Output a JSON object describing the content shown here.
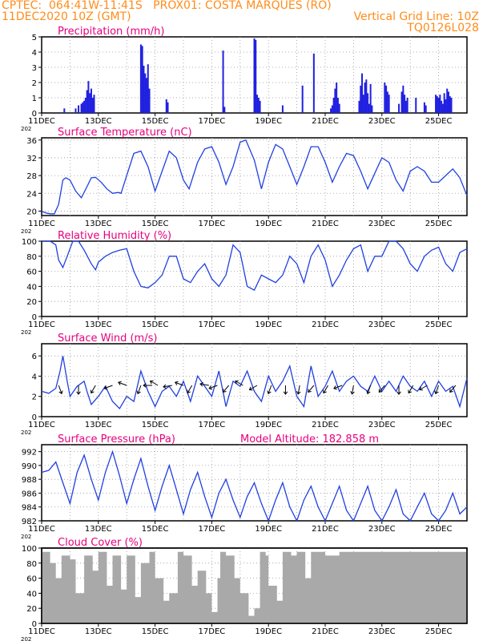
{
  "header": {
    "line1": "CPTEC:  064:41W-11:41S   PROX01: COSTA MARQUES (RO)",
    "line2": "11DEC2020 10Z (GMT)",
    "grid_note": "Vertical Grid Line: 10Z",
    "code": "TQ0126L028"
  },
  "colors": {
    "header": "#ff8c1a",
    "title": "#e6007e",
    "line": "#2040e0",
    "bar": "#2020e0",
    "cloud": "#a9a9a9",
    "arrow": "#000000"
  },
  "x_tick_labels": [
    "11DEC",
    "13DEC",
    "15DEC",
    "17DEC",
    "19DEC",
    "21DEC",
    "23DEC",
    "25DEC"
  ],
  "year_fragment": "202",
  "chart_data": [
    {
      "type": "bar",
      "title": "Precipitation  (mm/h)",
      "ylim": [
        0,
        5
      ],
      "yticks": [
        "0",
        "1",
        "2",
        "3",
        "4",
        "5"
      ],
      "xlim_days": [
        0,
        15
      ],
      "grid": true,
      "x": [
        0.8,
        1.2,
        1.3,
        1.4,
        1.45,
        1.5,
        1.55,
        1.6,
        1.65,
        1.7,
        1.75,
        1.8,
        1.85,
        3.5,
        3.55,
        3.6,
        3.65,
        3.7,
        3.75,
        3.8,
        4.4,
        4.45,
        6.4,
        6.45,
        7.5,
        7.55,
        7.6,
        7.65,
        7.7,
        8.5,
        9.2,
        9.6,
        10.2,
        10.25,
        10.3,
        10.35,
        10.4,
        10.45,
        10.5,
        11.2,
        11.25,
        11.3,
        11.35,
        11.4,
        11.45,
        11.5,
        11.55,
        11.6,
        11.65,
        12.1,
        12.15,
        12.2,
        12.25,
        12.6,
        12.7,
        12.75,
        12.8,
        12.85,
        12.9,
        13.2,
        13.5,
        13.55,
        13.9,
        13.95,
        14.0,
        14.05,
        14.1,
        14.15,
        14.2,
        14.25,
        14.3,
        14.35,
        14.4,
        14.45
      ],
      "values": [
        0.3,
        0.3,
        0.5,
        0.6,
        0.7,
        0.8,
        1.0,
        1.5,
        2.1,
        1.3,
        1.6,
        1.0,
        1.2,
        4.5,
        4.4,
        3.1,
        2.6,
        2.3,
        3.2,
        1.6,
        0.9,
        0.7,
        4.1,
        0.4,
        4.9,
        4.8,
        1.2,
        1.0,
        0.8,
        0.5,
        1.8,
        3.9,
        0.3,
        0.5,
        1.0,
        1.6,
        2.0,
        1.0,
        0.6,
        0.8,
        1.8,
        2.6,
        1.2,
        2.0,
        2.2,
        1.3,
        0.6,
        1.9,
        0.5,
        2.0,
        1.8,
        1.4,
        1.2,
        0.6,
        1.4,
        1.8,
        1.2,
        0.8,
        1.0,
        1.0,
        0.7,
        0.5,
        1.2,
        1.1,
        1.0,
        1.2,
        0.8,
        0.6,
        1.3,
        0.9,
        1.6,
        1.4,
        1.1,
        1.0
      ]
    },
    {
      "type": "line",
      "title": "Surface Temperature (nC)",
      "ylim": [
        19,
        36.5
      ],
      "yticks": [
        "20",
        "24",
        "28",
        "32",
        "36"
      ],
      "xlim_days": [
        0,
        15
      ],
      "grid": true,
      "x": [
        0,
        0.1,
        0.2,
        0.3,
        0.45,
        0.6,
        0.75,
        0.85,
        1.0,
        1.2,
        1.4,
        1.6,
        1.75,
        1.9,
        2.1,
        2.3,
        2.5,
        2.7,
        2.8,
        3.0,
        3.25,
        3.5,
        3.75,
        4.0,
        4.25,
        4.5,
        4.75,
        5.0,
        5.2,
        5.5,
        5.75,
        6.0,
        6.25,
        6.5,
        6.75,
        7.0,
        7.2,
        7.5,
        7.75,
        8.0,
        8.25,
        8.5,
        8.75,
        9.0,
        9.25,
        9.5,
        9.75,
        10.0,
        10.25,
        10.5,
        10.75,
        11.0,
        11.25,
        11.5,
        11.75,
        12.0,
        12.25,
        12.5,
        12.75,
        13.0,
        13.25,
        13.5,
        13.75,
        14.0,
        14.25,
        14.5,
        14.75,
        15.0
      ],
      "values": [
        20,
        19.7,
        19.5,
        19.4,
        19.4,
        21.5,
        27,
        27.5,
        27,
        24.5,
        23,
        25.5,
        27.5,
        27.6,
        26.5,
        25,
        24,
        24.2,
        24,
        28,
        33,
        33.5,
        30,
        24.5,
        29,
        33.5,
        32,
        27,
        25,
        31,
        34,
        34.5,
        31,
        26,
        30,
        35.5,
        36,
        31.5,
        25,
        31,
        35,
        34,
        30,
        26,
        30,
        34.5,
        34.5,
        31,
        26.5,
        30,
        33,
        32.5,
        29,
        25,
        28.5,
        32,
        31,
        27,
        24.5,
        29,
        30,
        29,
        26.5,
        26.5,
        28,
        29.5,
        27.5,
        23.5
      ]
    },
    {
      "type": "line",
      "title": "Relative Humidity (%)",
      "ylim": [
        0,
        100
      ],
      "yticks": [
        "0",
        "20",
        "40",
        "60",
        "80",
        "100"
      ],
      "xlim_days": [
        0,
        15
      ],
      "grid": true,
      "x": [
        0,
        0.3,
        0.5,
        0.6,
        0.75,
        0.9,
        1.1,
        1.3,
        1.5,
        1.75,
        1.9,
        2.0,
        2.25,
        2.5,
        2.75,
        3.0,
        3.25,
        3.5,
        3.75,
        4.0,
        4.25,
        4.5,
        4.75,
        5.0,
        5.25,
        5.5,
        5.75,
        6.0,
        6.25,
        6.5,
        6.75,
        7.0,
        7.25,
        7.5,
        7.75,
        8.0,
        8.25,
        8.5,
        8.75,
        9.0,
        9.25,
        9.5,
        9.75,
        10.0,
        10.25,
        10.5,
        10.75,
        11.0,
        11.25,
        11.5,
        11.75,
        12.0,
        12.25,
        12.5,
        12.75,
        13.0,
        13.25,
        13.5,
        13.75,
        14.0,
        14.25,
        14.5,
        14.75,
        15.0
      ],
      "values": [
        100,
        100,
        95,
        75,
        65,
        80,
        100,
        100,
        88,
        70,
        62,
        72,
        80,
        85,
        88,
        90,
        60,
        40,
        38,
        45,
        55,
        80,
        80,
        50,
        45,
        60,
        70,
        50,
        40,
        55,
        95,
        85,
        40,
        35,
        55,
        50,
        45,
        55,
        80,
        70,
        45,
        80,
        95,
        75,
        40,
        55,
        75,
        90,
        95,
        60,
        80,
        80,
        100,
        100,
        90,
        70,
        60,
        80,
        88,
        92,
        70,
        60,
        85,
        90
      ]
    },
    {
      "type": "line",
      "title": "Surface Wind  (m/s)",
      "ylim": [
        0,
        7.2
      ],
      "yticks": [
        "0",
        "2",
        "4",
        "6"
      ],
      "xlim_days": [
        0,
        15
      ],
      "grid": true,
      "x": [
        0,
        0.25,
        0.5,
        0.65,
        0.75,
        0.9,
        1.0,
        1.25,
        1.5,
        1.6,
        1.75,
        2.0,
        2.25,
        2.5,
        2.75,
        3.0,
        3.25,
        3.5,
        3.75,
        4.0,
        4.25,
        4.5,
        4.75,
        5.0,
        5.25,
        5.5,
        5.75,
        6.0,
        6.25,
        6.5,
        6.75,
        7.0,
        7.25,
        7.5,
        7.75,
        8.0,
        8.25,
        8.5,
        8.75,
        9.0,
        9.25,
        9.5,
        9.75,
        10.0,
        10.25,
        10.5,
        10.75,
        11.0,
        11.25,
        11.5,
        11.75,
        12.0,
        12.25,
        12.5,
        12.75,
        13.0,
        13.25,
        13.5,
        13.75,
        14.0,
        14.25,
        14.5,
        14.75,
        15.0
      ],
      "values": [
        2.5,
        2.3,
        2.8,
        4.5,
        6,
        3.5,
        2.0,
        3.0,
        3.5,
        2.5,
        1.2,
        2.0,
        3.0,
        1.5,
        0.8,
        2.0,
        1.5,
        4.5,
        2.5,
        1.0,
        2.5,
        3.0,
        2.0,
        3.5,
        1.5,
        4.0,
        3.0,
        2.0,
        4.5,
        1.0,
        3.5,
        3.0,
        4.5,
        2.5,
        1.5,
        4.0,
        2.5,
        3.5,
        5.0,
        2.0,
        1.0,
        5.0,
        2.0,
        3.0,
        4.5,
        2.5,
        3.5,
        4.0,
        3.0,
        2.5,
        4.0,
        2.5,
        3.5,
        2.5,
        4.0,
        3.0,
        2.5,
        3.5,
        2.0,
        3.5,
        2.5,
        3.0,
        1.0,
        3.8
      ],
      "arrows_x": [
        0.6,
        1.3,
        1.9,
        2.5,
        3.0,
        3.5,
        3.9,
        4.1,
        4.6,
        5.0,
        5.3,
        5.9,
        6.2,
        6.6,
        7.1,
        7.6,
        8.1,
        8.6,
        9.1,
        9.6,
        10.1,
        10.6,
        11.0,
        11.6,
        12.1,
        12.6,
        13.1,
        13.6,
        14.0,
        14.6
      ],
      "arrows_angle_deg": [
        290,
        270,
        240,
        200,
        160,
        250,
        180,
        150,
        190,
        160,
        240,
        170,
        200,
        230,
        150,
        210,
        250,
        270,
        260,
        230,
        240,
        200,
        260,
        250,
        230,
        270,
        240,
        210,
        250,
        230
      ]
    },
    {
      "type": "line",
      "title": "Surface Pressure (hPa)",
      "annotation": "Model Altitude: 182.858  m",
      "ylim": [
        982,
        993
      ],
      "yticks": [
        "982",
        "984",
        "986",
        "988",
        "990",
        "992"
      ],
      "xlim_days": [
        0,
        15
      ],
      "grid": true,
      "x": [
        0,
        0.25,
        0.5,
        0.75,
        1.0,
        1.25,
        1.5,
        1.75,
        2.0,
        2.25,
        2.5,
        2.75,
        3.0,
        3.25,
        3.5,
        3.75,
        4.0,
        4.25,
        4.5,
        4.75,
        5.0,
        5.25,
        5.5,
        5.75,
        6.0,
        6.25,
        6.5,
        6.75,
        7.0,
        7.25,
        7.5,
        7.75,
        8.0,
        8.25,
        8.5,
        8.75,
        9.0,
        9.25,
        9.5,
        9.75,
        10.0,
        10.25,
        10.5,
        10.75,
        11.0,
        11.25,
        11.5,
        11.75,
        12.0,
        12.25,
        12.5,
        12.75,
        13.0,
        13.25,
        13.5,
        13.75,
        14.0,
        14.25,
        14.5,
        14.75,
        15.0
      ],
      "values": [
        989,
        989.3,
        990.5,
        987.5,
        984.5,
        989,
        991.5,
        988,
        985,
        989,
        992,
        988.5,
        984.5,
        988,
        991,
        987,
        983.5,
        987,
        990,
        986.5,
        983,
        986.5,
        989,
        985.5,
        982.5,
        986,
        988,
        985,
        982.5,
        985.5,
        987.5,
        984.5,
        982,
        985,
        987.5,
        984,
        982,
        985,
        987,
        984,
        982,
        984.5,
        987,
        983.5,
        982,
        984.5,
        987,
        983.5,
        982,
        984,
        986.5,
        983,
        982,
        984,
        986,
        983,
        982,
        983.5,
        986,
        983,
        984
      ]
    },
    {
      "type": "area",
      "title": "Cloud Cover (%)",
      "ylim": [
        0,
        100
      ],
      "yticks": [
        "0",
        "20",
        "40",
        "60",
        "80",
        "100"
      ],
      "xlim_days": [
        0,
        15
      ],
      "grid": true,
      "x": [
        0,
        0.3,
        0.5,
        0.7,
        1.0,
        1.2,
        1.5,
        1.8,
        2.0,
        2.3,
        2.5,
        2.8,
        3.0,
        3.3,
        3.5,
        3.8,
        4.0,
        4.3,
        4.5,
        4.8,
        5.0,
        5.3,
        5.5,
        5.8,
        6.0,
        6.2,
        6.3,
        6.5,
        6.8,
        7.0,
        7.3,
        7.5,
        7.7,
        7.9,
        8.0,
        8.3,
        8.5,
        8.8,
        9.0,
        9.3,
        9.5,
        9.8,
        10.0,
        10.5,
        11.0,
        11.5,
        12.0,
        12.5,
        13.0,
        13.5,
        14.0,
        14.5,
        15.0
      ],
      "values": [
        95,
        80,
        60,
        90,
        85,
        40,
        90,
        70,
        95,
        50,
        90,
        45,
        90,
        35,
        80,
        95,
        60,
        30,
        40,
        95,
        90,
        50,
        70,
        40,
        15,
        60,
        95,
        90,
        60,
        40,
        10,
        20,
        95,
        90,
        50,
        30,
        95,
        90,
        95,
        60,
        95,
        95,
        90,
        95,
        95,
        95,
        95,
        95,
        95,
        95,
        95,
        95,
        95
      ]
    }
  ]
}
